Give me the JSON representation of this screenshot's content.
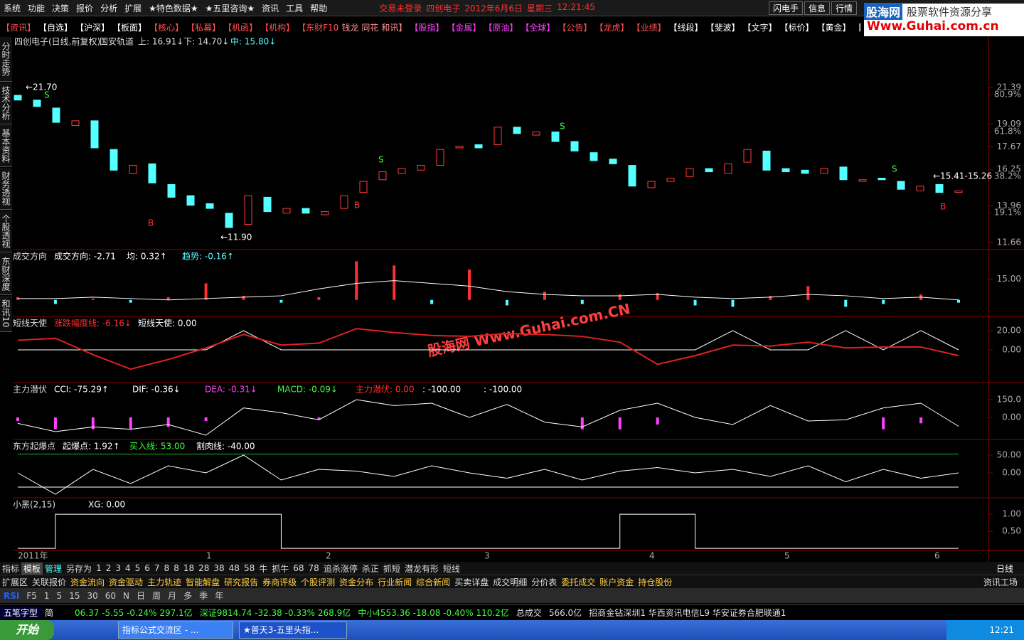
{
  "menu": {
    "items": [
      "系统",
      "功能",
      "决策",
      "报价",
      "分析",
      "扩展",
      "★特色数据★",
      "★五里咨询★",
      "资讯",
      "工具",
      "帮助"
    ],
    "status_text": "交易未登录",
    "stock": "四创电子",
    "date": "2012年6月6日",
    "weekday": "星期三",
    "time": "12:21:45",
    "right_items": [
      "闪电手",
      "信息",
      "行情"
    ]
  },
  "logo": {
    "brand": "股海网",
    "slogan": "股票软件资源分享",
    "url": "Www.Guhai.com.cn"
  },
  "toolbar": [
    "【资讯】",
    "【自选】",
    "【沪深】",
    "【板面】",
    "【核心】",
    "【私募】",
    "【机函】",
    "【机构】",
    "【东财F10",
    "钱龙",
    "同花",
    "和讯】",
    "【股指】",
    "【金属】",
    "【原油】",
    "【全球】",
    "【公告】",
    "【龙虎】",
    "【业绩】",
    "【线段】",
    "【斐波】",
    "【文字】",
    "【标价】",
    "【黄金】",
    "【册"
  ],
  "side_tabs": [
    "分时走势",
    "技术分析",
    "基本资料",
    "财务透视",
    "个股透视",
    "东财深度",
    "和讯10"
  ],
  "watermark": "股海网 Www.Guhai.com.CN",
  "chart_data": {
    "type": "candlestick",
    "title": "四创电子(日线,前复权)",
    "indicator": "国安轨道",
    "upper": "上: 16.91↓",
    "lower": "下: 14.70↓",
    "middle": "中: 15.80↓",
    "high_label": "←21.70",
    "low_label": "←11.90",
    "last_label": "←15.41-15.26",
    "buy_label": "B",
    "sell_label": "S",
    "open": [
      20.9,
      20.6,
      20.1,
      19.0,
      19.3,
      17.5,
      16.0,
      16.6,
      15.3,
      14.6,
      14.1,
      13.5,
      12.8,
      14.5,
      13.5,
      13.8,
      13.4,
      13.8,
      14.8,
      15.6,
      16.0,
      16.2,
      16.5,
      17.6,
      17.8,
      17.8,
      18.9,
      18.4,
      18.6,
      18.0,
      17.3,
      16.9,
      16.5,
      15.1,
      15.5,
      15.8,
      16.3,
      16.0,
      16.7,
      17.4,
      16.3,
      16.2,
      16.0,
      16.4,
      15.5,
      15.7,
      15.5,
      14.9,
      15.3,
      14.8
    ],
    "close": [
      20.6,
      20.2,
      19.2,
      19.3,
      17.6,
      16.2,
      16.5,
      15.4,
      14.5,
      14.0,
      13.8,
      12.6,
      14.6,
      13.6,
      13.8,
      13.5,
      13.6,
      14.6,
      15.5,
      16.1,
      16.3,
      16.5,
      17.5,
      17.7,
      17.6,
      18.9,
      18.5,
      18.6,
      18.0,
      17.4,
      16.8,
      16.6,
      15.2,
      15.5,
      15.7,
      16.3,
      16.1,
      16.6,
      17.5,
      16.2,
      16.1,
      16.0,
      16.3,
      15.6,
      15.6,
      15.6,
      15.0,
      15.2,
      14.8,
      14.9
    ],
    "up_color": "#ff3c3c",
    "down_color": "#54ffff",
    "ylim": [
      11.26,
      24.56
    ],
    "yticks": [
      21.39,
      19.09,
      17.67,
      16.25,
      13.96,
      11.66
    ],
    "fib_ticks": [
      {
        "value": 20.94,
        "label": "80.9%"
      },
      {
        "value": 18.62,
        "label": "61.8%"
      },
      {
        "value": 15.81,
        "label": "38.2%"
      },
      {
        "value": 13.53,
        "label": "19.1%"
      }
    ],
    "x_labels": [
      "2011年",
      "1",
      "2",
      "3",
      "4",
      "5",
      "6"
    ]
  },
  "panels": [
    {
      "title": "成交方向",
      "labels": [
        {
          "text": "成交方向: -2.71",
          "color": "#fff"
        },
        {
          "text": "均: 0.32↑",
          "color": "#fff"
        },
        {
          "text": "趋势: -0.16↑",
          "color": "#54ffff"
        }
      ],
      "ylim": [
        -12,
        36
      ],
      "yticks": [
        {
          "value": 15,
          "label": "15.00"
        }
      ],
      "series": [
        {
          "kind": "bar",
          "values": [
            2,
            -3,
            1,
            -2,
            2,
            12,
            3,
            -2,
            2,
            28,
            25,
            -3,
            22,
            -4,
            6,
            -3,
            4,
            5,
            -4,
            -5,
            3,
            10,
            -5,
            -3,
            4,
            -2
          ]
        },
        {
          "kind": "line",
          "color": "#fff",
          "values": [
            1,
            1,
            2,
            1,
            0,
            1,
            2,
            3,
            8,
            12,
            14,
            12,
            10,
            6,
            4,
            3,
            3,
            4,
            2,
            1,
            2,
            4,
            3,
            1,
            2,
            0
          ]
        }
      ]
    },
    {
      "title": "短线天使",
      "labels": [
        {
          "text": "涨跌幅度线: -6.16↓",
          "color": "#ff3030"
        },
        {
          "text": "短线天使: 0.00",
          "color": "#fff"
        }
      ],
      "ylim": [
        -34,
        34
      ],
      "yticks": [
        {
          "value": 20,
          "label": "20.00"
        },
        {
          "value": 0,
          "label": "0.00"
        }
      ],
      "series": [
        {
          "kind": "line",
          "color": "#fff",
          "values": [
            0,
            0,
            0,
            0,
            0,
            0,
            20,
            0,
            0,
            0,
            0,
            0,
            0,
            0,
            0,
            0,
            0,
            0,
            0,
            20,
            0,
            0,
            20,
            0,
            20,
            0
          ]
        },
        {
          "kind": "line",
          "color": "#e02020",
          "values": [
            10,
            12,
            -5,
            -20,
            -10,
            2,
            16,
            5,
            7,
            22,
            18,
            15,
            14,
            17,
            16,
            14,
            8,
            -15,
            -6,
            5,
            4,
            8,
            2,
            3,
            3,
            -6
          ]
        }
      ]
    },
    {
      "title": "主力潜伏",
      "labels": [
        {
          "text": "CCI: -75.29↑",
          "color": "#fff"
        },
        {
          "text": "DIF: -0.36↓",
          "color": "#fff"
        },
        {
          "text": "DEA: -0.31↓",
          "color": "#ff40ff"
        },
        {
          "text": "MACD: -0.09↓",
          "color": "#40ff40"
        },
        {
          "text": "主力潜伏: 0.00",
          "color": "#ff3030"
        },
        {
          "text": ": -100.00",
          "color": "#fff"
        },
        {
          "text": ": -100.00",
          "color": "#fff"
        }
      ],
      "ylim": [
        -186,
        288
      ],
      "yticks": [
        {
          "value": 150,
          "label": "150.0"
        },
        {
          "value": 0,
          "label": "0.00"
        }
      ],
      "series": [
        {
          "kind": "bar",
          "values": [
            -30,
            -100,
            -100,
            -100,
            -80,
            -30,
            0,
            0,
            -20,
            0,
            0,
            0,
            0,
            0,
            0,
            -100,
            -100,
            -60,
            0,
            0,
            0,
            0,
            0,
            -100,
            -50,
            0
          ]
        },
        {
          "kind": "line",
          "color": "#fff",
          "values": [
            -50,
            -120,
            -80,
            -100,
            -60,
            -150,
            80,
            40,
            -20,
            150,
            100,
            120,
            0,
            110,
            -40,
            -80,
            60,
            120,
            0,
            -60,
            100,
            -30,
            -20,
            80,
            120,
            -75
          ]
        }
      ]
    },
    {
      "title": "东方起爆点",
      "labels": [
        {
          "text": "起爆点: 1.92↑",
          "color": "#fff"
        },
        {
          "text": "买入线: 53.00",
          "color": "#40ff40"
        },
        {
          "text": "割肉线: -40.00",
          "color": "#fff"
        }
      ],
      "ylim": [
        -70,
        92
      ],
      "yticks": [
        {
          "value": 50,
          "label": "50.00"
        },
        {
          "value": 0,
          "label": "0.00"
        }
      ],
      "levels": [
        {
          "value": 53,
          "color": "#20c020"
        },
        {
          "value": -40,
          "color": "#fff"
        }
      ],
      "series": [
        {
          "kind": "line",
          "color": "#fff",
          "values": [
            0,
            -60,
            10,
            -30,
            20,
            0,
            50,
            -20,
            10,
            5,
            -10,
            20,
            0,
            -15,
            10,
            -20,
            5,
            15,
            0,
            10,
            -10,
            20,
            -25,
            10,
            -15,
            0
          ]
        }
      ]
    },
    {
      "title": "小黑(2,15)",
      "labels": [
        {
          "text": "XG: 0.00",
          "color": "#fff"
        }
      ],
      "ylim": [
        -0.08,
        1.46
      ],
      "yticks": [
        {
          "value": 1,
          "label": "1.00"
        },
        {
          "value": 0.5,
          "label": "0.50"
        }
      ],
      "series": [
        {
          "kind": "step",
          "color": "#fff",
          "values": [
            0,
            1,
            1,
            1,
            1,
            1,
            1,
            0,
            0,
            0,
            0,
            0,
            0,
            0,
            0,
            0,
            1,
            1,
            0,
            0,
            0,
            0,
            0,
            0,
            0,
            0
          ]
        }
      ]
    }
  ],
  "tabs1": [
    "指标",
    "模板",
    "管理",
    "另存为",
    "1",
    "2",
    "3",
    "4",
    "5",
    "6",
    "7",
    "8",
    "8",
    "18",
    "28",
    "38",
    "48",
    "58",
    "牛",
    "抓牛",
    "68",
    "78",
    "追杀涨停",
    "杀正",
    "抓短",
    "潜龙有形",
    "短线"
  ],
  "tabs1_right": "日线",
  "tabs2": [
    "扩展区",
    "关联报价",
    "资金流向",
    "资金驱动",
    "主力轨迹",
    "智能解盘",
    "研究报告",
    "券商评级",
    "个股评测",
    "资金分布",
    "行业新闻",
    "综合新闻",
    "买卖详盘",
    "成交明细",
    "分价表",
    "委托成交",
    "账户资金",
    "持仓股份"
  ],
  "tabs2_right": "资讯工场",
  "tools": [
    "RSI",
    "F5",
    "1",
    "5",
    "15",
    "30",
    "60",
    "N",
    "日",
    "周",
    "月",
    "多",
    "季",
    "年"
  ],
  "status": {
    "ime": "五笔字型",
    "mode": "简",
    "index1": "06.37  -5.55  -0.24%  297.1亿",
    "index2": "深证9814.74  -32.38  -0.33%  268.9亿",
    "index3": "中小4553.36  -18.08  -0.40%  110.2亿",
    "total": "总成交",
    "total_value": "566.0亿",
    "servers": "招商金钻深圳1  华西资讯电信L9  华安证券合肥联通1"
  },
  "taskbar": {
    "start": "开始",
    "task1": "指标公式交流区 - ...",
    "task2": "★普天3-五里头指...",
    "clock": "12:21"
  }
}
